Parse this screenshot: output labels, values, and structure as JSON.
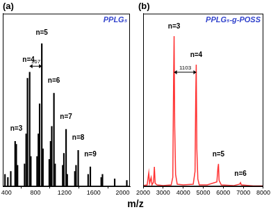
{
  "xlabel": "m/z",
  "chart_data": [
    {
      "type": "bar",
      "title": "(a)",
      "subtitle": "PPLG₅",
      "color": "#000000",
      "x": [
        380,
        420,
        460,
        520,
        536,
        553,
        650,
        672,
        690,
        720,
        736,
        822,
        840,
        857,
        887,
        903,
        990,
        1008,
        1024,
        1054,
        1070,
        1175,
        1191,
        1221,
        1237,
        1342,
        1358,
        1388,
        1525,
        1555,
        1705,
        1722,
        1890,
        2057
      ],
      "values": [
        8,
        6,
        10,
        30,
        28,
        14,
        15,
        35,
        72,
        76,
        20,
        20,
        35,
        55,
        95,
        25,
        18,
        30,
        40,
        62,
        15,
        14,
        22,
        38,
        8,
        10,
        14,
        24,
        8,
        13,
        6,
        8,
        5,
        4
      ],
      "xlim": [
        350,
        2100
      ],
      "xticks": [
        400,
        800,
        1200,
        1600,
        2000
      ],
      "ylim": [
        0,
        115
      ],
      "grid": false,
      "tick_labels": "x",
      "annotations": [
        {
          "text": "n=3",
          "x": 536,
          "y": 36
        },
        {
          "text": "n=4",
          "x": 705,
          "y": 82
        },
        {
          "text": "n=5",
          "x": 887,
          "y": 100
        },
        {
          "text": "n=6",
          "x": 1054,
          "y": 68
        },
        {
          "text": "n=7",
          "x": 1221,
          "y": 44
        },
        {
          "text": "n=8",
          "x": 1388,
          "y": 30
        },
        {
          "text": "n=9",
          "x": 1555,
          "y": 19
        },
        {
          "text": "167",
          "x1": 720,
          "x2": 887,
          "y": 80
        }
      ]
    },
    {
      "type": "line",
      "title": "(b)",
      "subtitle": "PPLG₅-g-POSS",
      "color": "#ff3333",
      "x": [
        2000,
        2200,
        2280,
        2320,
        2400,
        2440,
        2520,
        2560,
        2600,
        2700,
        3000,
        3400,
        3480,
        3520,
        3545,
        3575,
        3620,
        3700,
        4000,
        4500,
        4590,
        4625,
        4650,
        4680,
        4730,
        4800,
        5200,
        5680,
        5730,
        5760,
        5790,
        5900,
        6500,
        6820,
        6860,
        6900,
        7500,
        8000
      ],
      "values": [
        0.5,
        1,
        9,
        2,
        6,
        1,
        3,
        13,
        2,
        1,
        0.5,
        1,
        6,
        70,
        100,
        40,
        8,
        1.5,
        1,
        1.5,
        10,
        60,
        81,
        25,
        5,
        1,
        1,
        3,
        12,
        15,
        4,
        1,
        0.5,
        1.5,
        2.5,
        1,
        0.3,
        0.3
      ],
      "xlim": [
        2000,
        8000
      ],
      "xticks": [
        2000,
        3000,
        4000,
        5000,
        6000,
        7000,
        8000
      ],
      "ylim": [
        0,
        115
      ],
      "grid": false,
      "tick_labels": "x",
      "annotations": [
        {
          "text": "n=3",
          "x": 3545,
          "y": 104
        },
        {
          "text": "n=4",
          "x": 4650,
          "y": 85
        },
        {
          "text": "n=5",
          "x": 5760,
          "y": 19
        },
        {
          "text": "n=6",
          "x": 6860,
          "y": 6
        },
        {
          "text": "1103",
          "x1": 3545,
          "x2": 4650,
          "y": 76
        }
      ]
    }
  ]
}
